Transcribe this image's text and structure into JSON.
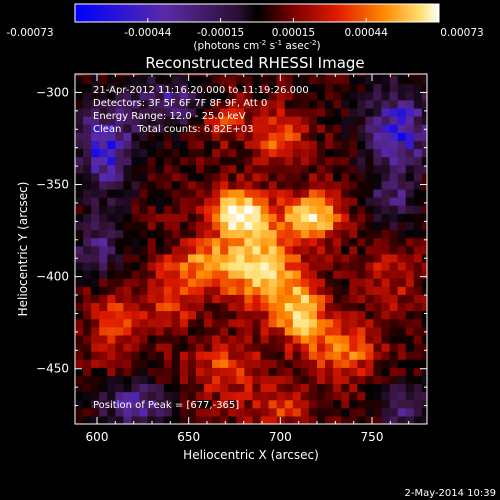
{
  "colorbar": {
    "tick_labels": [
      "-0.00073",
      "-0.00044",
      "-0.00015",
      "0.00015",
      "0.00044",
      "0.00073"
    ],
    "units_prefix": "(photons cm",
    "units_exp1": "-2",
    "units_mid": " s",
    "units_exp2": "-1",
    "units_mid2": " asec",
    "units_exp3": "-2",
    "units_suffix": ")"
  },
  "chart_data": {
    "type": "heatmap",
    "title": "Reconstructed RHESSI Image",
    "xlabel": "Heliocentric X (arcsec)",
    "ylabel": "Heliocentric Y (arcsec)",
    "xlim": [
      588,
      780
    ],
    "ylim": [
      -480,
      -290
    ],
    "x_ticks": [
      600,
      650,
      700,
      750
    ],
    "y_ticks": [
      -300,
      -350,
      -400,
      -450
    ],
    "x_tick_labels": [
      "600",
      "650",
      "700",
      "750"
    ],
    "y_tick_labels": [
      "−300",
      "−350",
      "−400",
      "−450"
    ],
    "value_range": [
      -0.00073,
      0.00073
    ],
    "colormap": [
      "#0000ff",
      "#5a2aa6",
      "#3a1540",
      "#000000",
      "#7a0000",
      "#e01a00",
      "#ff8a00",
      "#ffe070",
      "#ffffff"
    ],
    "peak": [
      677,
      -365
    ],
    "sources": [
      {
        "x": 677,
        "y": -365,
        "amp": 1.0,
        "sx": 11,
        "sy": 9
      },
      {
        "x": 718,
        "y": -367,
        "amp": 0.92,
        "sx": 11,
        "sy": 9
      },
      {
        "x": 690,
        "y": -395,
        "amp": 0.85,
        "sx": 14,
        "sy": 16
      },
      {
        "x": 712,
        "y": -420,
        "amp": 0.8,
        "sx": 10,
        "sy": 12
      },
      {
        "x": 735,
        "y": -440,
        "amp": 0.6,
        "sx": 12,
        "sy": 10
      },
      {
        "x": 660,
        "y": -392,
        "amp": 0.6,
        "sx": 12,
        "sy": 9
      },
      {
        "x": 640,
        "y": -410,
        "amp": 0.45,
        "sx": 10,
        "sy": 12
      },
      {
        "x": 610,
        "y": -425,
        "amp": 0.4,
        "sx": 10,
        "sy": 16
      },
      {
        "x": 700,
        "y": -325,
        "amp": 0.55,
        "sx": 9,
        "sy": 10
      },
      {
        "x": 670,
        "y": -315,
        "amp": 0.4,
        "sx": 10,
        "sy": 8
      },
      {
        "x": 670,
        "y": -450,
        "amp": 0.45,
        "sx": 14,
        "sy": 10
      },
      {
        "x": 760,
        "y": -400,
        "amp": 0.3,
        "sx": 10,
        "sy": 14
      },
      {
        "x": 700,
        "y": -470,
        "amp": 0.4,
        "sx": 12,
        "sy": 8
      }
    ],
    "negatives": [
      {
        "x": 605,
        "y": -330,
        "amp": 0.75,
        "sx": 12,
        "sy": 18
      },
      {
        "x": 640,
        "y": -305,
        "amp": 0.55,
        "sx": 14,
        "sy": 10
      },
      {
        "x": 765,
        "y": -320,
        "amp": 0.7,
        "sx": 14,
        "sy": 18
      },
      {
        "x": 620,
        "y": -470,
        "amp": 0.6,
        "sx": 14,
        "sy": 10
      },
      {
        "x": 770,
        "y": -470,
        "amp": 0.5,
        "sx": 10,
        "sy": 10
      },
      {
        "x": 600,
        "y": -385,
        "amp": 0.5,
        "sx": 10,
        "sy": 12
      },
      {
        "x": 760,
        "y": -360,
        "amp": 0.45,
        "sx": 10,
        "sy": 10
      }
    ]
  },
  "annotations": {
    "line1": "21-Apr-2012 11:16:20.000 to 11:19:26.000",
    "line2": "Detectors: 3F 5F 6F 7F 8F 9F, Att 0",
    "line3": "Energy Range: 12.0 - 25.0 keV",
    "line4": "Clean     Total counts: 6.82E+03",
    "peak_label": "Position of Peak = [677,-365]"
  },
  "footer": {
    "timestamp": "2-May-2014 10:39"
  }
}
